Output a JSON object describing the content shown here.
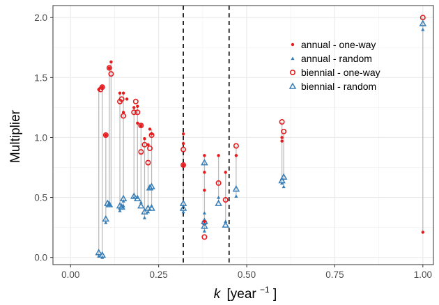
{
  "chart_data": {
    "type": "scatter",
    "xlabel_italic": "k",
    "xlabel_unit": "[year",
    "xlabel_sup": "−1",
    "xlabel_close": "]",
    "ylabel": "Multiplier",
    "xlim": [
      -0.05,
      1.03
    ],
    "ylim": [
      -0.06,
      2.1
    ],
    "x_ticks": [
      0,
      0.25,
      0.5,
      0.75,
      1
    ],
    "x_tick_labels": [
      "0.00",
      "0.25",
      "0.50",
      "0.75",
      "1.00"
    ],
    "y_ticks": [
      0,
      0.5,
      1,
      1.5,
      2
    ],
    "y_tick_labels": [
      "0.0",
      "0.5",
      "1.0",
      "1.5",
      "2.0"
    ],
    "grid": true,
    "legend_position": "top-right",
    "vlines": [
      0.32,
      0.45
    ],
    "colors": {
      "red": "#e41a1c",
      "blue": "#377eb8",
      "segment": "#bdbdbd",
      "grid": "#ebebeb",
      "panel_border": "#333333"
    },
    "series": [
      {
        "name": "annual - one-way",
        "marker": "dot",
        "color": "#e41a1c",
        "points": [
          [
            0.08,
            1.4
          ],
          [
            0.09,
            1.42
          ],
          [
            0.1,
            1.02
          ],
          [
            0.11,
            1.58
          ],
          [
            0.115,
            1.63
          ],
          [
            0.14,
            1.37
          ],
          [
            0.15,
            1.37
          ],
          [
            0.16,
            1.32
          ],
          [
            0.15,
            1.21
          ],
          [
            0.18,
            1.25
          ],
          [
            0.19,
            1.26
          ],
          [
            0.19,
            1.12
          ],
          [
            0.2,
            1.1
          ],
          [
            0.21,
            0.99
          ],
          [
            0.22,
            0.94
          ],
          [
            0.225,
            1.07
          ],
          [
            0.23,
            1.03
          ],
          [
            0.32,
            1.03
          ],
          [
            0.32,
            0.95
          ],
          [
            0.32,
            0.77
          ],
          [
            0.38,
            0.85
          ],
          [
            0.38,
            0.71
          ],
          [
            0.38,
            0.56
          ],
          [
            0.38,
            0.3
          ],
          [
            0.42,
            0.85
          ],
          [
            0.44,
            0.71
          ],
          [
            0.47,
            0.85
          ],
          [
            0.6,
            1.0
          ],
          [
            0.6,
            0.97
          ],
          [
            1.0,
            0.21
          ]
        ]
      },
      {
        "name": "annual - random",
        "marker": "triangle-small",
        "color": "#377eb8",
        "points": [
          [
            0.08,
            0.01
          ],
          [
            0.09,
            0.0
          ],
          [
            0.1,
            0.29
          ],
          [
            0.11,
            0.44
          ],
          [
            0.14,
            0.39
          ],
          [
            0.15,
            0.43
          ],
          [
            0.15,
            0.47
          ],
          [
            0.18,
            0.5
          ],
          [
            0.19,
            0.5
          ],
          [
            0.2,
            0.46
          ],
          [
            0.21,
            0.33
          ],
          [
            0.22,
            0.38
          ],
          [
            0.23,
            0.43
          ],
          [
            0.32,
            0.38
          ],
          [
            0.38,
            0.37
          ],
          [
            0.38,
            0.22
          ],
          [
            0.42,
            0.5
          ],
          [
            0.44,
            0.3
          ],
          [
            0.47,
            0.51
          ],
          [
            0.6,
            0.62
          ],
          [
            0.605,
            0.59
          ],
          [
            1.0,
            1.9
          ]
        ]
      },
      {
        "name": "biennial - one-way",
        "marker": "circle-open",
        "color": "#e41a1c",
        "points": [
          [
            0.085,
            1.4
          ],
          [
            0.09,
            1.42
          ],
          [
            0.1,
            1.02
          ],
          [
            0.11,
            1.58
          ],
          [
            0.115,
            1.53
          ],
          [
            0.14,
            1.3
          ],
          [
            0.145,
            1.32
          ],
          [
            0.15,
            1.18
          ],
          [
            0.18,
            1.21
          ],
          [
            0.185,
            1.3
          ],
          [
            0.19,
            1.21
          ],
          [
            0.2,
            1.1
          ],
          [
            0.2,
            0.88
          ],
          [
            0.21,
            0.94
          ],
          [
            0.22,
            0.79
          ],
          [
            0.225,
            0.91
          ],
          [
            0.23,
            1.02
          ],
          [
            0.32,
            0.9
          ],
          [
            0.32,
            0.77
          ],
          [
            0.38,
            0.29
          ],
          [
            0.38,
            0.17
          ],
          [
            0.42,
            0.62
          ],
          [
            0.44,
            0.48
          ],
          [
            0.47,
            0.93
          ],
          [
            0.6,
            1.13
          ],
          [
            0.605,
            1.05
          ],
          [
            1.0,
            2.0
          ]
        ]
      },
      {
        "name": "biennial - random",
        "marker": "triangle-open",
        "color": "#377eb8",
        "points": [
          [
            0.08,
            0.04
          ],
          [
            0.09,
            0.02
          ],
          [
            0.1,
            0.32
          ],
          [
            0.105,
            0.45
          ],
          [
            0.11,
            0.44
          ],
          [
            0.14,
            0.43
          ],
          [
            0.145,
            0.42
          ],
          [
            0.15,
            0.49
          ],
          [
            0.18,
            0.51
          ],
          [
            0.19,
            0.49
          ],
          [
            0.2,
            0.43
          ],
          [
            0.21,
            0.38
          ],
          [
            0.22,
            0.41
          ],
          [
            0.225,
            0.58
          ],
          [
            0.23,
            0.59
          ],
          [
            0.23,
            0.41
          ],
          [
            0.32,
            0.45
          ],
          [
            0.32,
            0.41
          ],
          [
            0.38,
            0.79
          ],
          [
            0.38,
            0.3
          ],
          [
            0.38,
            0.26
          ],
          [
            0.42,
            0.45
          ],
          [
            0.44,
            0.27
          ],
          [
            0.47,
            0.57
          ],
          [
            0.6,
            0.64
          ],
          [
            0.605,
            0.67
          ],
          [
            1.0,
            1.95
          ]
        ]
      }
    ],
    "segments": [
      [
        0.08,
        0.01,
        1.4
      ],
      [
        0.09,
        0.0,
        1.42
      ],
      [
        0.1,
        0.29,
        1.02
      ],
      [
        0.11,
        0.44,
        1.58
      ],
      [
        0.115,
        0.44,
        1.63
      ],
      [
        0.14,
        0.39,
        1.37
      ],
      [
        0.15,
        0.43,
        1.37
      ],
      [
        0.18,
        0.5,
        1.25
      ],
      [
        0.19,
        0.49,
        1.26
      ],
      [
        0.2,
        0.43,
        1.1
      ],
      [
        0.21,
        0.33,
        0.99
      ],
      [
        0.22,
        0.38,
        0.94
      ],
      [
        0.23,
        0.41,
        1.07
      ],
      [
        0.32,
        0.38,
        1.03
      ],
      [
        0.38,
        0.22,
        0.85
      ],
      [
        0.42,
        0.45,
        0.85
      ],
      [
        0.44,
        0.27,
        0.71
      ],
      [
        0.47,
        0.51,
        0.93
      ],
      [
        0.6,
        0.62,
        1.13
      ],
      [
        0.605,
        0.59,
        1.05
      ],
      [
        1.0,
        0.21,
        2.0
      ]
    ]
  }
}
